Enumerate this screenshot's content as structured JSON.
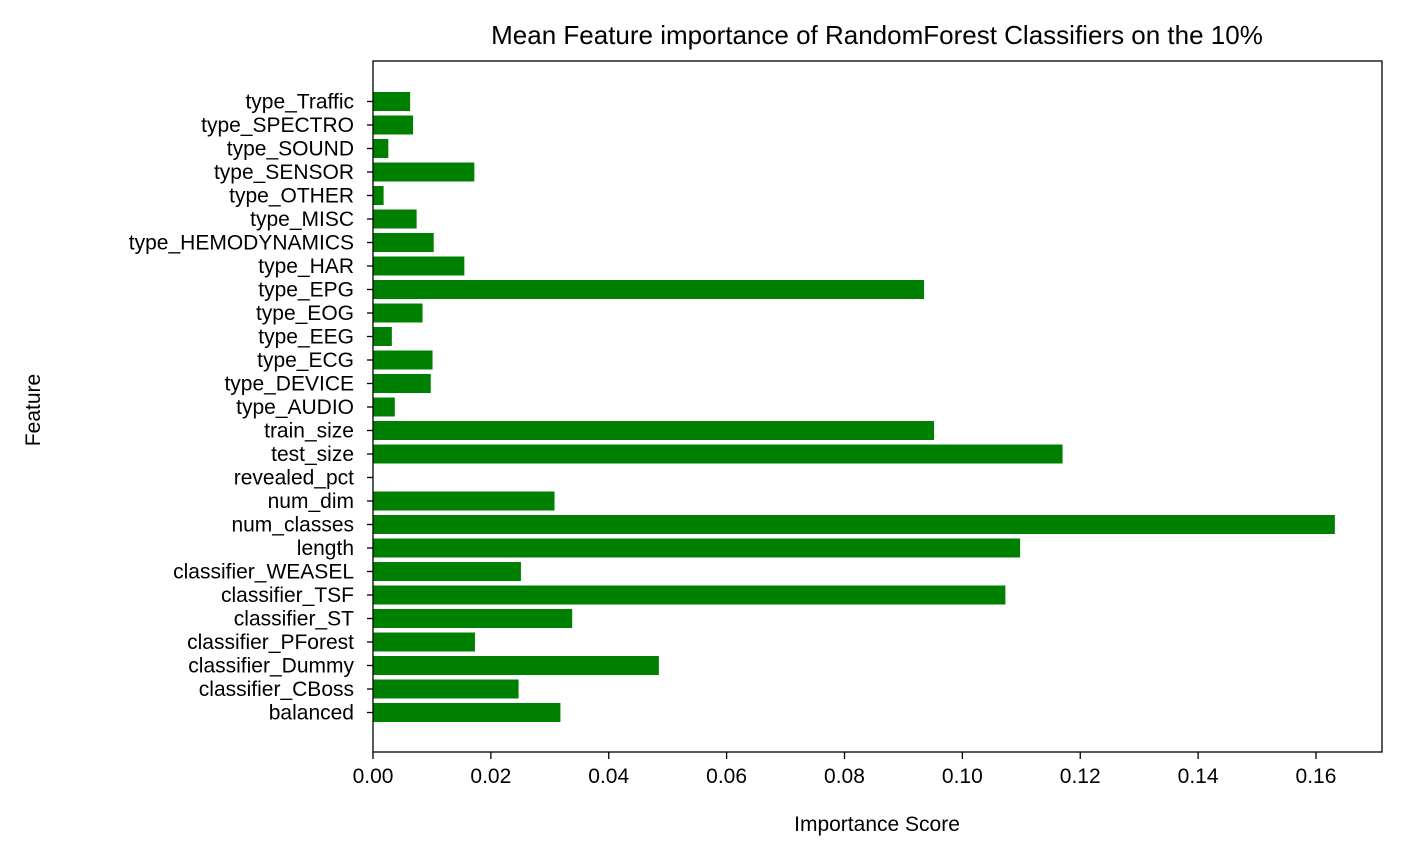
{
  "chart_data": {
    "type": "bar",
    "orientation": "horizontal",
    "title": "Mean Feature importance of RandomForest Classifiers on the 10%",
    "xlabel": "Importance Score",
    "ylabel": "Feature",
    "xlim": [
      0,
      0.1712
    ],
    "xticks": [
      "0.00",
      "0.02",
      "0.04",
      "0.06",
      "0.08",
      "0.10",
      "0.12",
      "0.14",
      "0.16"
    ],
    "grid": false,
    "bar_color": "#008000",
    "categories": [
      "balanced",
      "classifier_CBoss",
      "classifier_Dummy",
      "classifier_PForest",
      "classifier_ST",
      "classifier_TSF",
      "classifier_WEASEL",
      "length",
      "num_classes",
      "num_dim",
      "revealed_pct",
      "test_size",
      "train_size",
      "type_AUDIO",
      "type_DEVICE",
      "type_ECG",
      "type_EEG",
      "type_EOG",
      "type_EPG",
      "type_HAR",
      "type_HEMODYNAMICS",
      "type_MISC",
      "type_OTHER",
      "type_SENSOR",
      "type_SOUND",
      "type_SPECTRO",
      "type_Traffic"
    ],
    "values": [
      0.0318,
      0.0247,
      0.0485,
      0.0173,
      0.0338,
      0.1073,
      0.0251,
      0.1098,
      0.1632,
      0.0308,
      0.0,
      0.117,
      0.0952,
      0.0037,
      0.0098,
      0.0101,
      0.0032,
      0.0084,
      0.0935,
      0.0155,
      0.0103,
      0.0074,
      0.0018,
      0.0172,
      0.0026,
      0.0068,
      0.0063
    ]
  }
}
